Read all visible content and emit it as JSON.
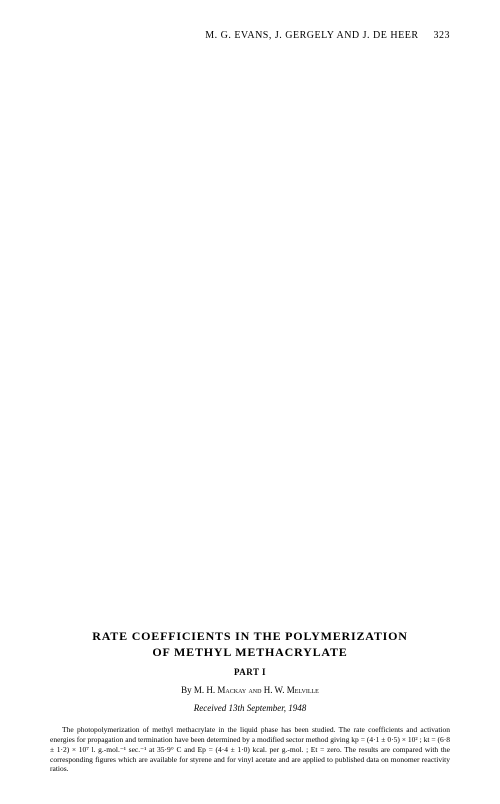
{
  "header": {
    "authors": "M. G. EVANS, J. GERGELY AND J. DE HEER",
    "page_number": "323"
  },
  "article": {
    "title_line1": "RATE COEFFICIENTS IN THE POLYMERIZATION",
    "title_line2": "OF METHYL METHACRYLATE",
    "part": "PART I",
    "by_label": "By",
    "authors": "M. H. Mackay and H. W. Melville",
    "received": "Received 13th September, 1948",
    "abstract": "The photopolymerization of methyl methacrylate in the liquid phase has been studied. The rate coefficients and activation energies for propagation and termination have been determined by a modified sector method giving kp = (4·1 ± 0·5) × 10² ; kt = (6·8 ± 1·2) × 10⁷ l. g.-mol.⁻¹ sec.⁻¹ at 35·9° C and Ep = (4·4 ± 1·0) kcal. per g.-mol. ; Et = zero. The results are compared with the corresponding figures which are available for styrene and for vinyl acetate and are applied to published data on monomer reactivity ratios."
  },
  "styling": {
    "background_color": "#ffffff",
    "text_color": "#000000",
    "title_fontsize": 12,
    "body_fontsize": 9,
    "abstract_fontsize": 7.5,
    "font_family": "Georgia, Times New Roman, serif"
  }
}
